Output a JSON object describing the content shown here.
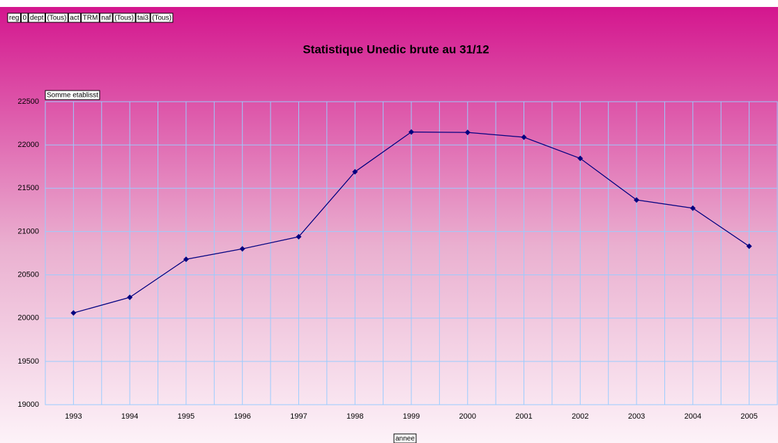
{
  "chart_data": {
    "type": "line",
    "title": "Statistique Unedic brute au 31/12",
    "filters": [
      "reg",
      "0",
      "dept",
      "(Tous)",
      "act",
      "TRM",
      "naf",
      "(Tous)",
      "tai3",
      "(Tous)"
    ],
    "y_axis_label": "Somme etablisst",
    "x_axis_label": "annee",
    "categories": [
      "1993",
      "1994",
      "1995",
      "1996",
      "1997",
      "1998",
      "1999",
      "2000",
      "2001",
      "2002",
      "2003",
      "2004",
      "2005"
    ],
    "series": [
      {
        "name": "Somme etablisst",
        "color": "#000080",
        "values": [
          20060,
          20240,
          20680,
          20800,
          20940,
          21690,
          22150,
          22145,
          22090,
          21845,
          21365,
          21270,
          20830
        ]
      }
    ],
    "ylim": [
      19000,
      22500
    ],
    "yticks": [
      19000,
      19500,
      20000,
      20500,
      21000,
      21500,
      22000,
      22500
    ],
    "grid": true
  }
}
